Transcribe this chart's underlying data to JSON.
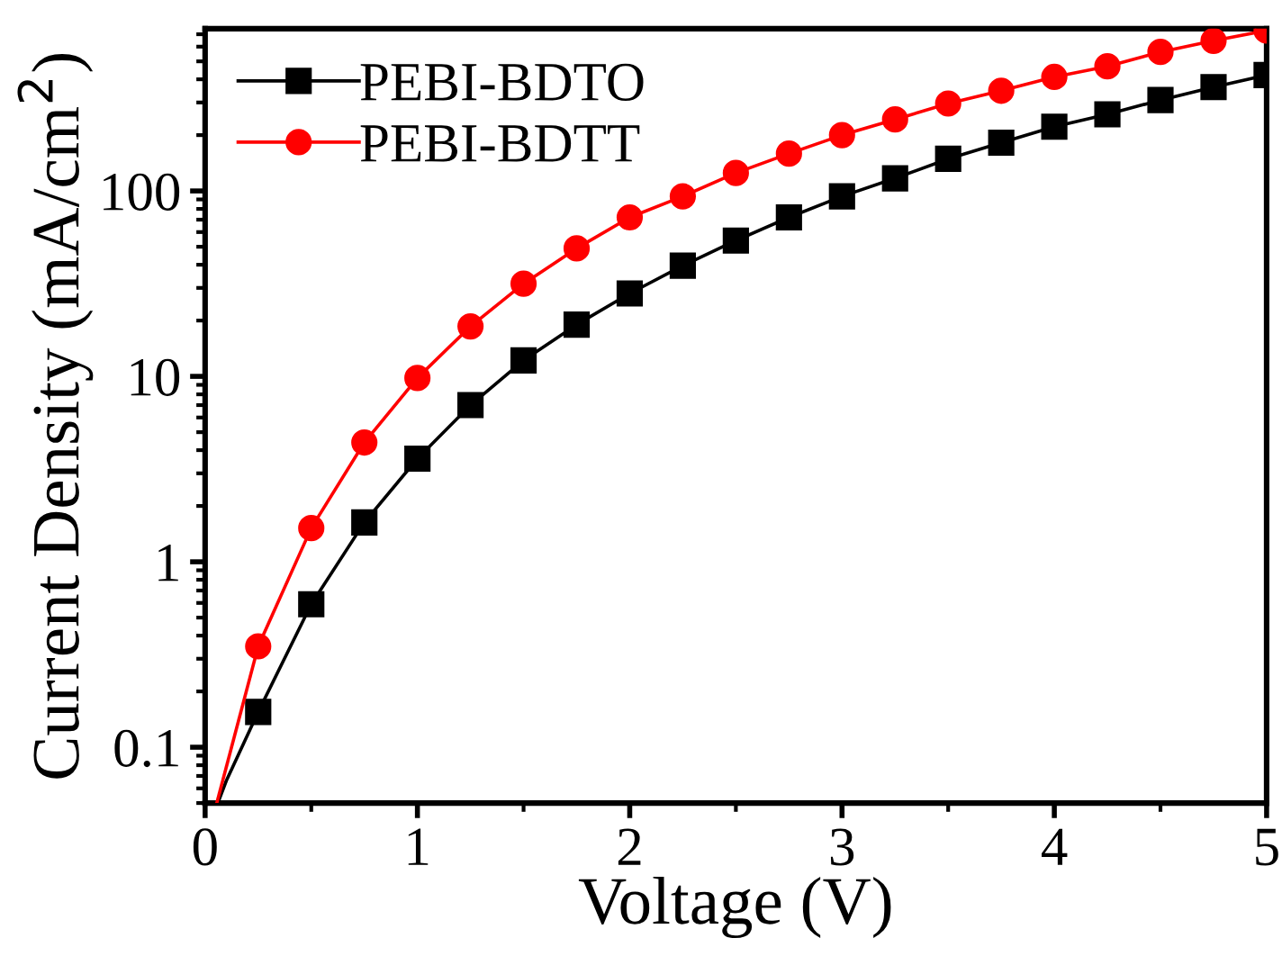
{
  "chart_data": {
    "type": "line",
    "xlabel": "Voltage (V)",
    "ylabel": "Current Density (mA/cm$^{2}$)",
    "xlim": [
      0,
      5
    ],
    "xticks": [
      0,
      1,
      2,
      3,
      4,
      5
    ],
    "ylim": [
      0.05,
      750
    ],
    "yticks": [
      0.1,
      1,
      10,
      100
    ],
    "log": "y",
    "legend": "top left",
    "grid": false,
    "series": [
      {
        "name": "PEBI-BDTO",
        "color": "#000000",
        "marker": "square",
        "x": [
          0.25,
          0.5,
          0.75,
          1.0,
          1.25,
          1.5,
          1.75,
          2.0,
          2.25,
          2.5,
          2.75,
          3.0,
          3.25,
          3.5,
          3.75,
          4.0,
          4.25,
          4.5,
          4.75,
          5.0
        ],
        "values": [
          0.155,
          0.59,
          1.63,
          3.6,
          7.0,
          12.2,
          19,
          28,
          39.5,
          54,
          72,
          93.5,
          117,
          149,
          182,
          222,
          259,
          309,
          363,
          422
        ]
      },
      {
        "name": "PEBI-BDTT",
        "color": "#ff0000",
        "marker": "circle",
        "x": [
          0.25,
          0.5,
          0.75,
          1.0,
          1.25,
          1.5,
          1.75,
          2.0,
          2.25,
          2.5,
          2.75,
          3.0,
          3.25,
          3.5,
          3.75,
          4.0,
          4.25,
          4.5,
          4.75,
          5.0
        ],
        "values": [
          0.35,
          1.52,
          4.4,
          9.8,
          18.6,
          31.6,
          49,
          72,
          93.5,
          125,
          159,
          200,
          243,
          296,
          347,
          412,
          470,
          562,
          645,
          733
        ]
      },
      {
        "color": "#000000",
        "marker": "none",
        "x": [
          0.06,
          0.1,
          0.25
        ],
        "values": [
          0.05,
          0.066,
          0.155
        ]
      },
      {
        "color": "#ff0000",
        "marker": "none",
        "x": [
          0.055,
          0.25
        ],
        "values": [
          0.05,
          0.35
        ]
      }
    ]
  }
}
